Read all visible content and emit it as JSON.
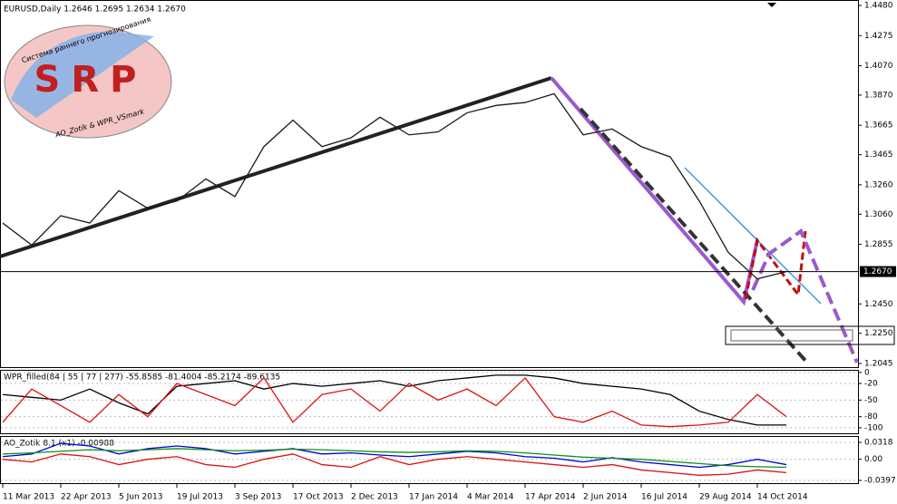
{
  "chart_data": [
    {
      "type": "line",
      "title": "EURUSD,Daily  1.2646 1.2695 1.2634 1.2670",
      "annotations": [
        "Система раннего прогнозирования",
        "SRP",
        "AO_Zotik & WPR_VSmark"
      ],
      "categories": [
        "11 Mar 2013",
        null,
        "22 Apr 2013",
        null,
        "5 Jun 2013",
        null,
        "19 Jul 2013",
        null,
        "3 Sep 2013",
        null,
        "17 Oct 2013",
        null,
        "2 Dec 2013",
        null,
        "17 Jan 2014",
        null,
        "4 Mar 2014",
        null,
        "17 Apr 2014",
        null,
        "2 Jun 2014",
        null,
        "16 Jul 2014",
        null,
        "29 Aug 2014",
        null,
        "14 Oct 2014",
        null
      ],
      "series": [
        {
          "color": "#1a1a1a",
          "values": [
            1.3,
            1.285,
            1.305,
            1.3,
            1.322,
            1.31,
            1.315,
            1.33,
            1.318,
            1.352,
            1.37,
            1.352,
            1.358,
            1.372,
            1.36,
            1.362,
            1.375,
            1.38,
            1.382,
            1.388,
            1.36,
            1.364,
            1.352,
            1.345,
            1.315,
            1.28,
            1.262,
            1.267
          ]
        }
      ],
      "ylim": [
        1.202,
        1.4511
      ],
      "yticks": [
        {
          "value": 1.448,
          "label": "1.4480"
        },
        1.4275,
        {
          "value": 1.407,
          "label": "1.4070"
        },
        {
          "value": 1.387,
          "label": "1.3870"
        },
        1.3665,
        1.3465,
        {
          "value": 1.326,
          "label": "1.3260"
        },
        {
          "value": 1.306,
          "label": "1.3060"
        },
        1.2855,
        {
          "value": 1.245,
          "label": "1.2450"
        },
        {
          "value": 1.225,
          "label": "1.2250"
        },
        1.2045
      ],
      "last_price": {
        "value": 1.267,
        "label": "1.2670"
      }
    },
    {
      "type": "line",
      "title": "WPR_filled(84 | 55 | 77 | 277)  -55.8585 -81.4004 -85.2174 -89.6135",
      "series": [
        {
          "color": "#000000",
          "values": [
            -40,
            -45,
            -50,
            -30,
            -55,
            -75,
            -25,
            -20,
            -15,
            -30,
            -20,
            -25,
            -20,
            -15,
            -25,
            -15,
            -10,
            -5,
            -5,
            -10,
            -20,
            -25,
            -30,
            -40,
            -70,
            -85,
            -95,
            -95
          ]
        },
        {
          "color": "#e01010",
          "values": [
            -90,
            -30,
            -60,
            -90,
            -40,
            -80,
            -20,
            -40,
            -60,
            -10,
            -90,
            -40,
            -30,
            -70,
            -20,
            -50,
            -30,
            -60,
            -10,
            -80,
            -90,
            -70,
            -95,
            -98,
            -95,
            -90,
            -40,
            -80
          ]
        }
      ],
      "ylim": [
        -110,
        3
      ],
      "yticks": [
        0,
        -20,
        -50,
        -80,
        -100
      ]
    },
    {
      "type": "line",
      "title": "AO_Zotik 8.1 (x1) -0.00988",
      "series": [
        {
          "color": "#0000dd",
          "values": [
            0.005,
            0.01,
            0.03,
            0.025,
            0.01,
            0.02,
            0.025,
            0.02,
            0.01,
            0.015,
            0.02,
            0.01,
            0.012,
            0.008,
            0.005,
            0.01,
            0.015,
            0.012,
            0.005,
            0.002,
            -0.005,
            0.003,
            -0.005,
            -0.01,
            -0.015,
            -0.01,
            0.0,
            -0.01
          ]
        },
        {
          "color": "#109010",
          "values": [
            0.01,
            0.012,
            0.015,
            0.018,
            0.016,
            0.018,
            0.02,
            0.018,
            0.016,
            0.017,
            0.019,
            0.018,
            0.016,
            0.014,
            0.013,
            0.014,
            0.016,
            0.015,
            0.012,
            0.008,
            0.004,
            0.002,
            0.0,
            -0.004,
            -0.008,
            -0.012,
            -0.014,
            -0.015
          ]
        },
        {
          "color": "#dd1010",
          "values": [
            0.0,
            -0.005,
            0.01,
            0.005,
            -0.01,
            0.0,
            0.005,
            -0.01,
            -0.015,
            0.0,
            0.01,
            -0.01,
            -0.015,
            0.005,
            -0.01,
            0.0,
            0.005,
            0.0,
            -0.005,
            -0.01,
            -0.015,
            -0.01,
            -0.02,
            -0.025,
            -0.03,
            -0.028,
            -0.02,
            -0.025
          ]
        }
      ],
      "ylim": [
        -0.0448,
        0.042
      ],
      "yticks": [
        0.0318,
        {
          "value": 0,
          "label": "0.00"
        },
        -0.0397
      ]
    }
  ]
}
